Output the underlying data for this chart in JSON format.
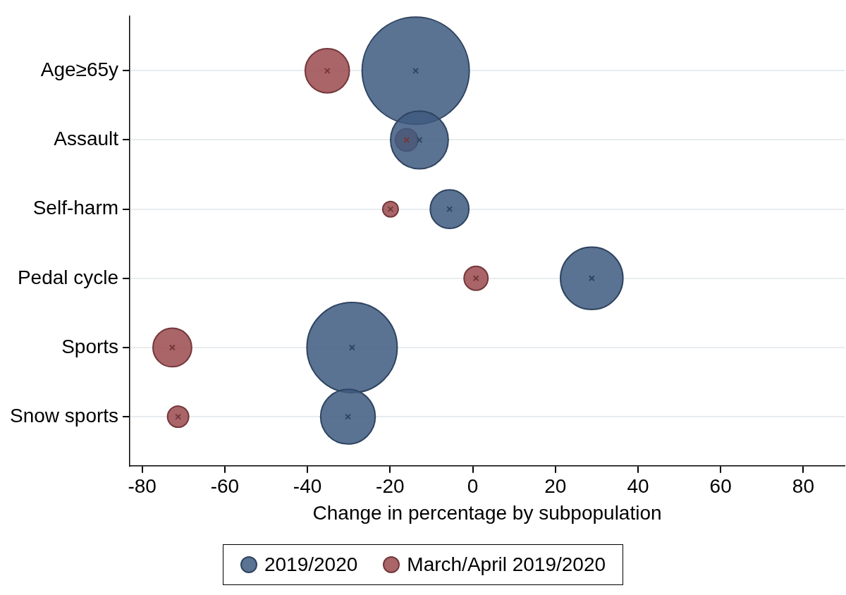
{
  "chart_data": {
    "type": "bubble",
    "orientation": "horizontal",
    "xlabel": "Change in percentage by subpopulation",
    "categories": [
      "Age≥65y",
      "Assault",
      "Self-harm",
      "Pedal cycle",
      "Sports",
      "Snow sports"
    ],
    "series": [
      {
        "name": "2019/2020",
        "color": "#3e5a80",
        "values": [
          -13.8,
          -12.9,
          -5.6,
          28.8,
          -29.2,
          -30.2
        ],
        "sizes": [
          1,
          0.29,
          0.13,
          0.34,
          0.71,
          0.26
        ]
      },
      {
        "name": "March/April 2019/2020",
        "color": "#9b4a4f",
        "values": [
          -35.2,
          -16,
          -19.9,
          0.8,
          -72.7,
          -71.3
        ],
        "sizes": [
          0.17,
          0.044,
          0.021,
          0.05,
          0.13,
          0.039
        ]
      }
    ],
    "xlim": [
      -83,
      90
    ],
    "xticks": [
      -80,
      -60,
      -40,
      -20,
      0,
      20,
      40,
      60,
      80
    ],
    "grid": "y",
    "legend": "bottom"
  }
}
